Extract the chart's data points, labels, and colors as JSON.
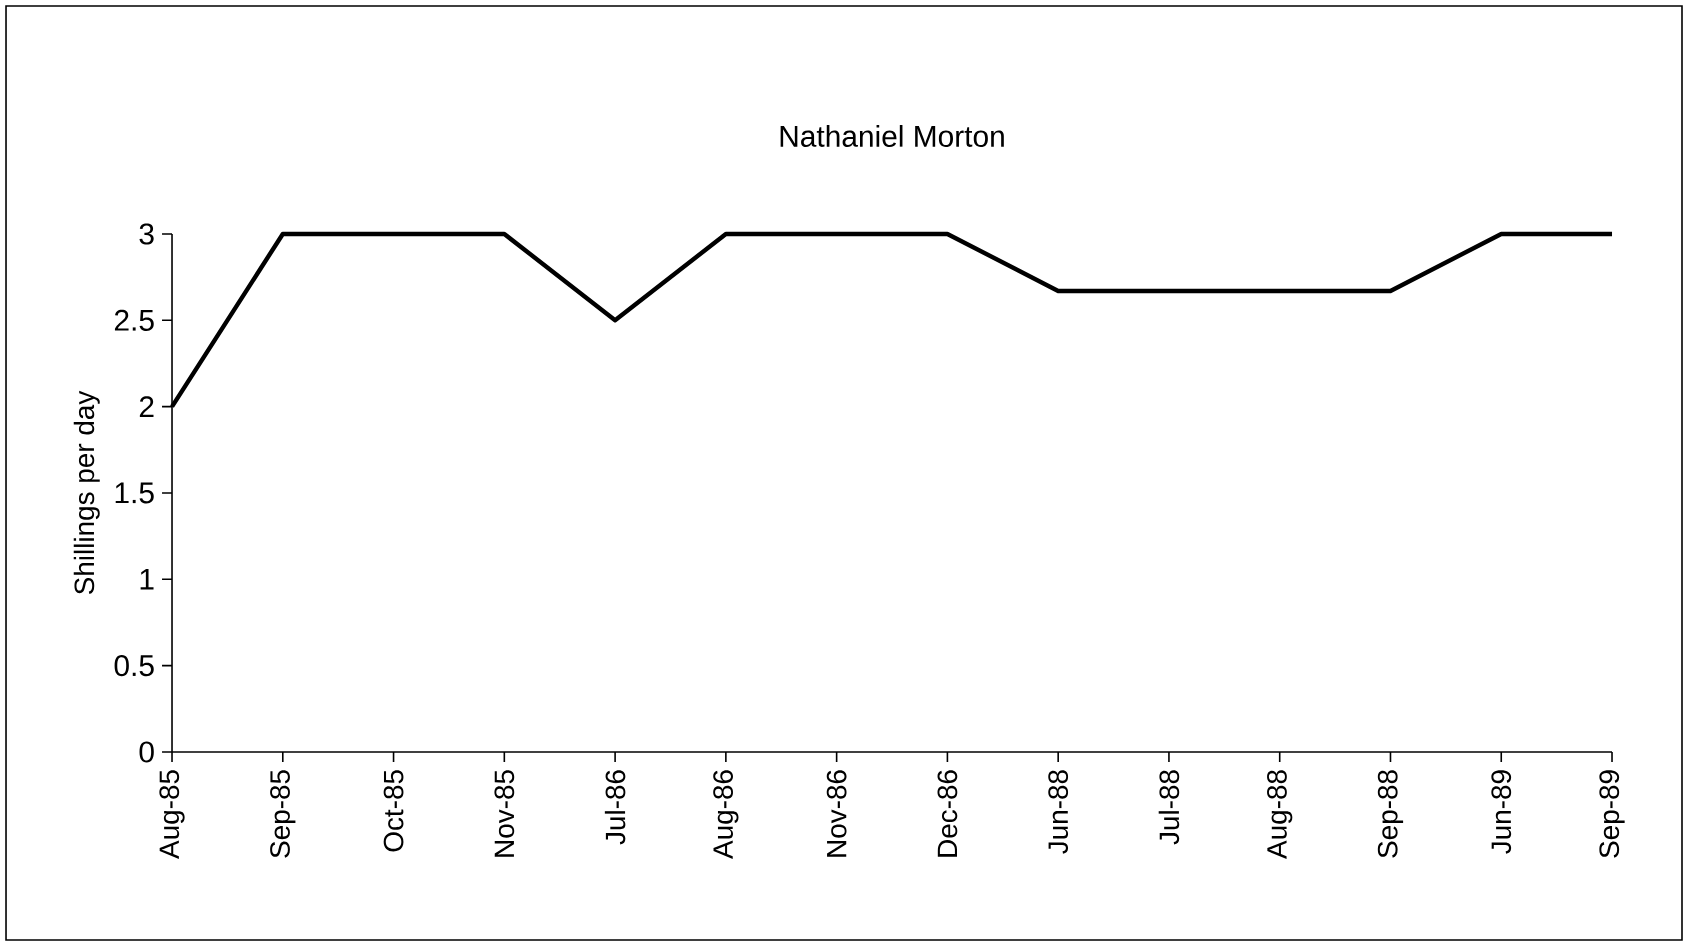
{
  "chart_data": {
    "type": "line",
    "title": "Nathaniel Morton",
    "ylabel": "Shillings per day",
    "categories": [
      "Aug-85",
      "Sep-85",
      "Oct-85",
      "Nov-85",
      "Jul-86",
      "Aug-86",
      "Nov-86",
      "Dec-86",
      "Jun-88",
      "Jul-88",
      "Aug-88",
      "Sep-88",
      "Jun-89",
      "Sep-89"
    ],
    "values": [
      2,
      3,
      3,
      3,
      2.5,
      3,
      3,
      3,
      2.67,
      2.67,
      2.67,
      2.67,
      3,
      3
    ],
    "color": "#000000",
    "ylim": [
      0,
      3
    ],
    "yticks": [
      0,
      0.5,
      1,
      1.5,
      2,
      2.5,
      3
    ],
    "grid": false,
    "marker": "none",
    "line_style": "solid"
  }
}
